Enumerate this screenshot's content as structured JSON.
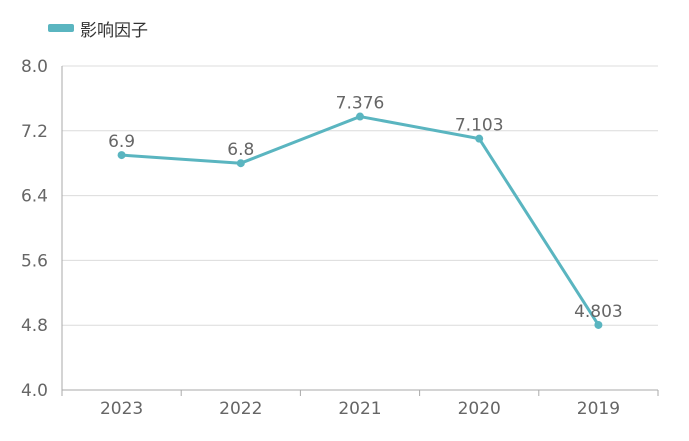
{
  "chart_data": {
    "type": "line",
    "title": "",
    "xlabel": "",
    "ylabel": "",
    "categories": [
      "2023",
      "2022",
      "2021",
      "2020",
      "2019"
    ],
    "series": [
      {
        "name": "影响因子",
        "values": [
          6.9,
          6.8,
          7.376,
          7.103,
          4.803
        ],
        "labels": [
          "6.9",
          "6.8",
          "7.376",
          "7.103",
          "4.803"
        ]
      }
    ],
    "ylim": [
      4.0,
      8.0
    ],
    "yticks": [
      "4.0",
      "4.8",
      "5.6",
      "6.4",
      "7.2",
      "8.0"
    ],
    "grid": true,
    "legend_position": "top-left",
    "colors": {
      "series": "#5ab5c0",
      "grid": "#dcdcdc",
      "axis": "#aaaaaa",
      "text": "#666666"
    }
  }
}
